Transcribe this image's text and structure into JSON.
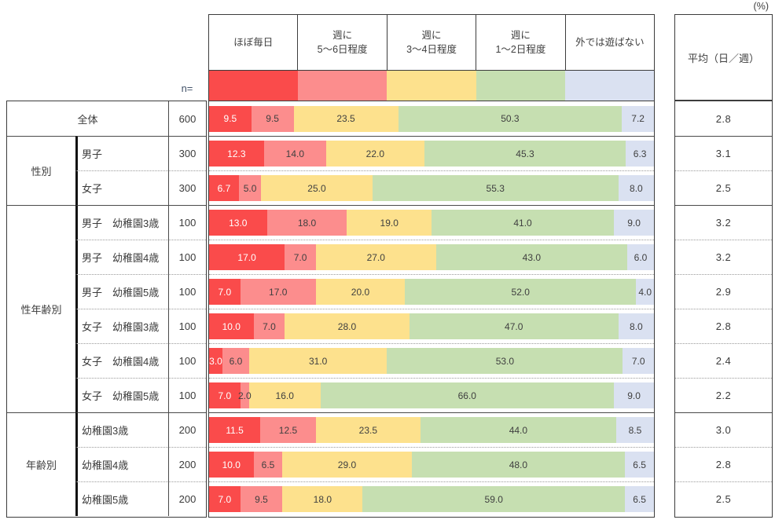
{
  "chart_data": {
    "type": "bar",
    "subtype": "horizontal-stacked-100percent",
    "unit": "(%)",
    "n_header": "n=",
    "avg_header": "平均（日／週）",
    "legend_position": "top",
    "series_labels": [
      "ほぼ毎日",
      "週に\n5〜6日程度",
      "週に\n3〜4日程度",
      "週に\n1〜2日程度",
      "外では遊ばない"
    ],
    "series_colors": [
      "#FA4B4B",
      "#FC8D8D",
      "#FDE18D",
      "#C6DFB1",
      "#DAE1F1"
    ],
    "xlim": [
      0,
      100
    ],
    "rows": [
      {
        "group": null,
        "label": "全体",
        "n": "600",
        "values": [
          9.5,
          9.5,
          23.5,
          50.3,
          7.2
        ],
        "avg": "2.8"
      },
      {
        "group": "性別",
        "label": "男子",
        "n": "300",
        "values": [
          12.3,
          14.0,
          22.0,
          45.3,
          6.3
        ],
        "avg": "3.1"
      },
      {
        "group": "性別",
        "label": "女子",
        "n": "300",
        "values": [
          6.7,
          5.0,
          25.0,
          55.3,
          8.0
        ],
        "avg": "2.5"
      },
      {
        "group": "性年齢別",
        "label": "男子　幼稚園3歳",
        "n": "100",
        "values": [
          13.0,
          18.0,
          19.0,
          41.0,
          9.0
        ],
        "avg": "3.2"
      },
      {
        "group": "性年齢別",
        "label": "男子　幼稚園4歳",
        "n": "100",
        "values": [
          17.0,
          7.0,
          27.0,
          43.0,
          6.0
        ],
        "avg": "3.2"
      },
      {
        "group": "性年齢別",
        "label": "男子　幼稚園5歳",
        "n": "100",
        "values": [
          7.0,
          17.0,
          20.0,
          52.0,
          4.0
        ],
        "avg": "2.9"
      },
      {
        "group": "性年齢別",
        "label": "女子　幼稚園3歳",
        "n": "100",
        "values": [
          10.0,
          7.0,
          28.0,
          47.0,
          8.0
        ],
        "avg": "2.8"
      },
      {
        "group": "性年齢別",
        "label": "女子　幼稚園4歳",
        "n": "100",
        "values": [
          3.0,
          6.0,
          31.0,
          53.0,
          7.0
        ],
        "avg": "2.4"
      },
      {
        "group": "性年齢別",
        "label": "女子　幼稚園5歳",
        "n": "100",
        "values": [
          7.0,
          2.0,
          16.0,
          66.0,
          9.0
        ],
        "avg": "2.2"
      },
      {
        "group": "年齢別",
        "label": "幼稚園3歳",
        "n": "200",
        "values": [
          11.5,
          12.5,
          23.5,
          44.0,
          8.5
        ],
        "avg": "3.0"
      },
      {
        "group": "年齢別",
        "label": "幼稚園4歳",
        "n": "200",
        "values": [
          10.0,
          6.5,
          29.0,
          48.0,
          6.5
        ],
        "avg": "2.8"
      },
      {
        "group": "年齢別",
        "label": "幼稚園5歳",
        "n": "200",
        "values": [
          7.0,
          9.5,
          18.0,
          59.0,
          6.5
        ],
        "avg": "2.5"
      }
    ]
  }
}
